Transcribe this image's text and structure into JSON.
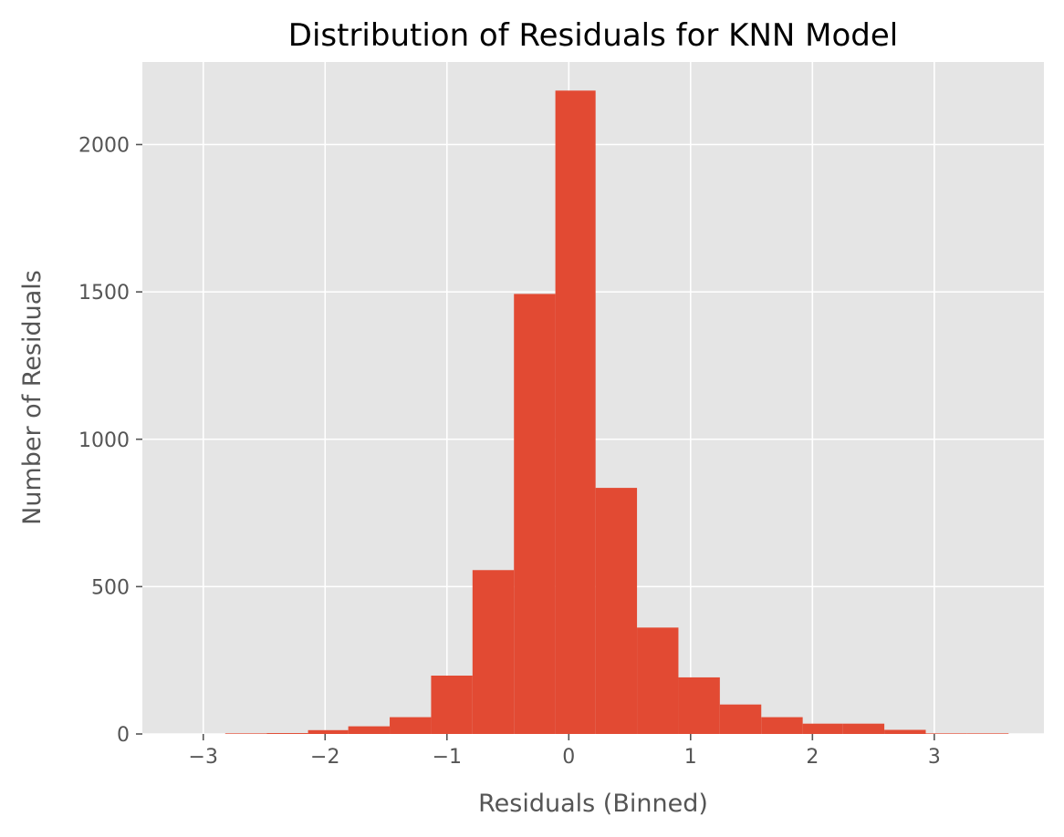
{
  "chart_data": {
    "type": "bar",
    "title": "Distribution of Residuals for KNN Model",
    "xlabel": "Residuals (Binned)",
    "ylabel": "Number of Residuals",
    "xlim": [
      -3.5,
      3.9
    ],
    "ylim": [
      0,
      2280
    ],
    "xticks": [
      -3,
      -2,
      -1,
      0,
      1,
      2,
      3
    ],
    "xtick_labels": [
      "−3",
      "−2",
      "−1",
      "0",
      "1",
      "2",
      "3"
    ],
    "yticks": [
      0,
      500,
      1000,
      1500,
      2000
    ],
    "ytick_labels": [
      "0",
      "500",
      "1000",
      "1500",
      "2000"
    ],
    "grid": true,
    "bin_edges": [
      -2.82,
      -2.48,
      -2.14,
      -1.81,
      -1.47,
      -1.13,
      -0.79,
      -0.45,
      -0.11,
      0.22,
      0.56,
      0.9,
      1.24,
      1.58,
      1.92,
      2.25,
      2.59,
      2.93,
      3.27,
      3.61
    ],
    "counts": [
      2,
      3,
      13,
      26,
      57,
      198,
      556,
      1493,
      2183,
      835,
      361,
      192,
      100,
      57,
      35,
      35,
      14,
      2,
      2
    ],
    "colors": {
      "bar": "#e24a33",
      "plot_background": "#e5e5e5",
      "grid": "#ffffff",
      "tick": "#555555"
    }
  }
}
